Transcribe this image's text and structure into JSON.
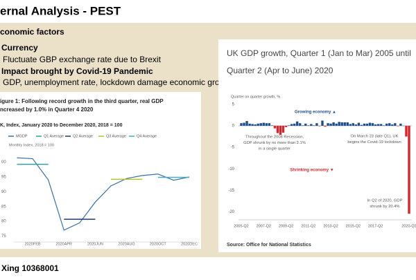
{
  "slide": {
    "title": "ernal Analysis - PEST",
    "heading": "conomic factors",
    "bullets": [
      "Currency",
      "Fluctuate GBP exchange rate due to Brexit",
      "Impact brought by Covid-19 Pandemic",
      "GDP, unemployment rate, lockdown damage economic growth"
    ],
    "footer": "Xing 10368001"
  },
  "chart_data": [
    {
      "type": "line",
      "title": [
        "igure 1: Following record growth in the third quarter, real GDP",
        "ncreased by 1.0% in Quarter 4 2020"
      ],
      "subtitle": "K, Index, January 2020 to December 2020, 2018 = 100",
      "y_label": "Monthly Index, 2018 = 100",
      "categories": [
        null,
        "2020FEB",
        null,
        "2020APR",
        null,
        "2020JUN",
        null,
        "2020AUG",
        null,
        "2020OCT",
        null,
        "2020DEC"
      ],
      "series": [
        {
          "name": "MGDP",
          "color": "#3a6fa8",
          "values": [
            101.5,
            101.2,
            94,
            77,
            79.5,
            86.5,
            92,
            94.5,
            95.5,
            96,
            93.9,
            95
          ]
        },
        {
          "name": "Q1 Average",
          "color": "#2fa39a",
          "values": [
            99.3,
            99.3,
            99.3,
            null,
            null,
            null,
            null,
            null,
            null,
            null,
            null,
            null
          ]
        },
        {
          "name": "Q2 Average",
          "color": "#1f3a6e",
          "values": [
            null,
            null,
            null,
            80.7,
            80.7,
            80.7,
            null,
            null,
            null,
            null,
            null,
            null
          ]
        },
        {
          "name": "Q3 Average",
          "color": "#b5c22a",
          "values": [
            null,
            null,
            null,
            null,
            null,
            null,
            94.2,
            94.2,
            94.2,
            null,
            null,
            null
          ]
        },
        {
          "name": "Q4 Average",
          "color": "#4aa8c7",
          "values": [
            null,
            null,
            null,
            null,
            null,
            null,
            null,
            null,
            null,
            94.9,
            94.9,
            94.9
          ]
        }
      ],
      "ylim": [
        73,
        104.6
      ],
      "yticks": [
        {
          "value": 100,
          "label": "00"
        },
        95,
        90,
        85,
        80,
        75
      ],
      "grid": false
    },
    {
      "type": "bar",
      "title": [
        "UK GDP growth, Quarter 1 (Jan to Mar) 2005 until",
        "Quarter 2 (Apr to June) 2020"
      ],
      "y_label": "Quarter on quarter growth, %",
      "categories": [
        "2005-Q2",
        null,
        null,
        null,
        null,
        null,
        null,
        null,
        "2007-Q2",
        null,
        null,
        null,
        null,
        null,
        null,
        null,
        "2009-Q2",
        null,
        null,
        null,
        null,
        null,
        null,
        null,
        "2011-Q2",
        null,
        null,
        null,
        null,
        null,
        null,
        null,
        "2013-Q2",
        null,
        null,
        null,
        null,
        null,
        null,
        null,
        "2015-Q2",
        null,
        null,
        null,
        null,
        null,
        null,
        null,
        "2017-Q2",
        null,
        null,
        null,
        null,
        null,
        null,
        null,
        null,
        null,
        null,
        null,
        "2020-Q2"
      ],
      "values": [
        0.6,
        0.7,
        1.1,
        0.5,
        0.4,
        0.3,
        0.5,
        0.6,
        0.7,
        0.6,
        0.6,
        0.1,
        -0.6,
        -1.7,
        -2.1,
        -1.6,
        -0.3,
        0.1,
        0.4,
        0.5,
        1.0,
        0.6,
        0.1,
        0.5,
        0.1,
        0.4,
        0.1,
        0.6,
        -0.1,
        1.2,
        -0.2,
        0.6,
        0.5,
        0.8,
        0.5,
        0.9,
        0.8,
        0.8,
        0.8,
        0.4,
        0.6,
        0.3,
        0.7,
        0.2,
        0.5,
        0.5,
        0.7,
        0.6,
        0.3,
        0.4,
        0.4,
        0.1,
        0.5,
        0.6,
        0.3,
        0.6,
        -0.1,
        0.5,
        0.0,
        -2.5,
        -20.4
      ],
      "color": "#1f4e8c",
      "negative_color": "#d7262b",
      "ylim": [
        -21.5,
        6
      ],
      "yticks": [
        5,
        0,
        -5,
        -10,
        -15,
        -20
      ],
      "grid": false,
      "annotations": [
        {
          "text": [
            "Growing economy ▲"
          ],
          "color": "#1f4e8c"
        },
        {
          "text": [
            "Throughout the 2008 Recession,",
            "GDP shrunk by no more than 2.1%",
            "in a single quarter"
          ],
          "color": "#555555"
        },
        {
          "text": [
            "On March 23 (late Q1), UK",
            "begins the Covid-19 lockdown"
          ],
          "color": "#555555"
        },
        {
          "text": [
            "Shrinking economy ▼"
          ],
          "color": "#d7262b"
        },
        {
          "text": [
            "In Q2 of 2020, GDP",
            "shrunk by 20.4%"
          ],
          "color": "#555555"
        }
      ],
      "source": "Source: Office for National Statistics"
    }
  ]
}
